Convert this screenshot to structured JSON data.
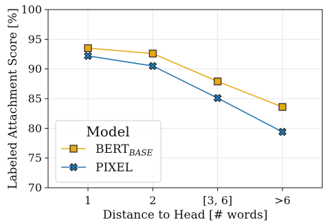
{
  "chart_data": {
    "type": "line",
    "xlabel": "Distance to Head [# words]",
    "ylabel": "Labeled Attachment Score [%]",
    "categories": [
      "1",
      "2",
      "[3, 6]",
      ">6"
    ],
    "ylim": [
      70,
      100
    ],
    "yticks": [
      70,
      75,
      80,
      85,
      90,
      95,
      100
    ],
    "grid": true,
    "legend": {
      "title": "Model",
      "position": "lower-left"
    },
    "series": [
      {
        "name": "BERT",
        "name_subscript": "BASE",
        "color": "#e6a817",
        "marker": "square",
        "values": [
          93.5,
          92.6,
          87.9,
          83.6
        ]
      },
      {
        "name": "PIXEL",
        "color": "#1f77b4",
        "marker": "x",
        "values": [
          92.2,
          90.5,
          85.1,
          79.4
        ]
      }
    ]
  }
}
